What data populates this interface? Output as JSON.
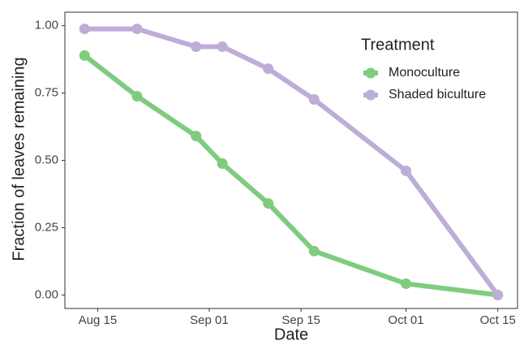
{
  "chart_data": {
    "type": "line",
    "x_label": "Date",
    "y_label": "Fraction of leaves remaining",
    "x": [
      "08-13",
      "08-21",
      "08-30",
      "09-03",
      "09-10",
      "09-17",
      "10-01",
      "10-15"
    ],
    "series": [
      {
        "name": "Monoculture",
        "color": "#7fcc7f",
        "values": [
          0.889,
          0.738,
          0.59,
          0.488,
          0.34,
          0.163,
          0.042,
          0
        ]
      },
      {
        "name": "Shaded biculture",
        "color": "#bdadd7",
        "values": [
          0.988,
          0.988,
          0.922,
          0.922,
          0.84,
          0.726,
          0.461,
          0
        ]
      }
    ],
    "xlim": [
      "08-10",
      "10-18"
    ],
    "xticks": [
      {
        "value": "08-15",
        "label": "Aug 15"
      },
      {
        "value": "09-01",
        "label": "Sep 01"
      },
      {
        "value": "09-15",
        "label": "Sep 15"
      },
      {
        "value": "10-01",
        "label": "Oct 01"
      },
      {
        "value": "10-15",
        "label": "Oct 15"
      }
    ],
    "ylim": [
      -0.05,
      1.05
    ],
    "yticks": [
      {
        "value": 0,
        "label": "0.00"
      },
      {
        "value": 0.25,
        "label": "0.25"
      },
      {
        "value": 0.5,
        "label": "0.50"
      },
      {
        "value": 0.75,
        "label": "0.75"
      },
      {
        "value": 1,
        "label": "1.00"
      }
    ],
    "legend_title": "Treatment",
    "legend_position": "top-right",
    "grid": false
  }
}
